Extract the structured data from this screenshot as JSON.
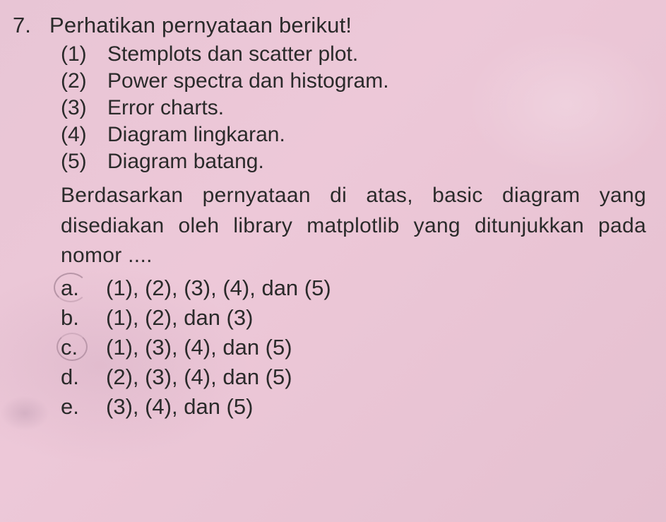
{
  "question": {
    "number": "7.",
    "title": "Perhatikan pernyataan berikut!",
    "statements": [
      {
        "num": "(1)",
        "text": "Stemplots dan scatter plot."
      },
      {
        "num": "(2)",
        "text": "Power spectra dan histogram."
      },
      {
        "num": "(3)",
        "text": "Error charts."
      },
      {
        "num": "(4)",
        "text": "Diagram lingkaran."
      },
      {
        "num": "(5)",
        "text": "Diagram batang."
      }
    ],
    "body": "Berdasarkan pernyataan di atas, basic diagram yang disediakan oleh library matplotlib yang ditunjukkan pada nomor ....",
    "options": [
      {
        "letter": "a.",
        "text": "(1), (2), (3), (4), dan (5)",
        "circled": true
      },
      {
        "letter": "b.",
        "text": "(1), (2), dan (3)",
        "circled": false
      },
      {
        "letter": "c.",
        "text": "(1), (3), (4), dan (5)",
        "circled": true
      },
      {
        "letter": "d.",
        "text": "(2), (3), (4), dan (5)",
        "circled": false
      },
      {
        "letter": "e.",
        "text": "(3), (4), dan (5)",
        "circled": false
      }
    ]
  },
  "style": {
    "background_tint": "#e8c5d5",
    "text_color": "#2a2a2a",
    "title_fontsize": 31,
    "statement_fontsize": 30,
    "body_fontsize": 30,
    "option_fontsize": 31,
    "pencil_circle_color": "rgba(90,60,80,0.35)"
  }
}
